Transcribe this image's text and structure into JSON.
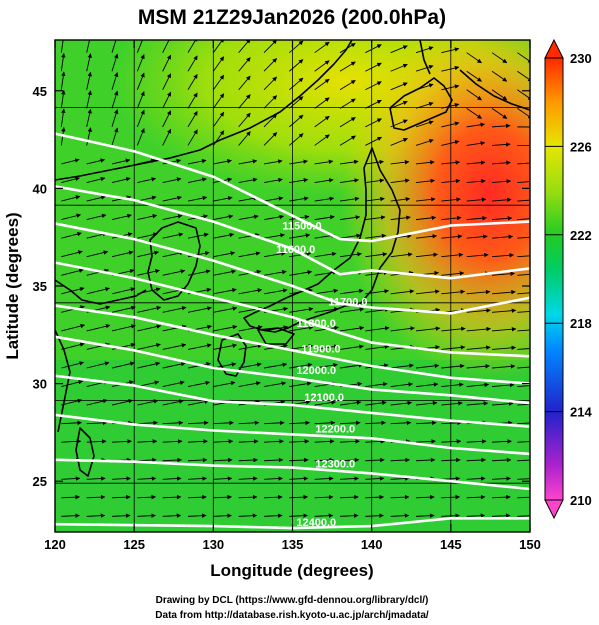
{
  "title": "MSM 21Z29Jan2026 (200.0hPa)",
  "xlabel": "Longitude (degrees)",
  "ylabel": "Latitude  (degrees)",
  "credits": [
    "Drawing by DCL (https://www.gfd-dennou.org/library/dcl/)",
    "Data from http://database.rish.kyoto-u.ac.jp/arch/jmadata/"
  ],
  "chart_data": {
    "type": "heatmap",
    "title": "MSM 21Z29Jan2026 (200.0hPa)",
    "xlabel": "Longitude (degrees)",
    "ylabel": "Latitude  (degrees)",
    "xlim": [
      120,
      150
    ],
    "ylim": [
      22.4,
      47.6
    ],
    "xticks": [
      120,
      125,
      130,
      135,
      140,
      145,
      150
    ],
    "yticks": [
      25,
      30,
      35,
      40,
      45
    ],
    "colorbar": {
      "range": [
        210,
        230
      ],
      "ticks": [
        210,
        214,
        218,
        222,
        226,
        230
      ],
      "colors": [
        "#ff44cc",
        "#2222cc",
        "#00c8ff",
        "#22cc22",
        "#c8e600",
        "#ff2a00"
      ]
    },
    "contour_labels": [
      {
        "text": "11500.0",
        "lon": 135.6,
        "lat": 37.9
      },
      {
        "text": "11600.0",
        "lon": 135.2,
        "lat": 36.7
      },
      {
        "text": "11700.0",
        "lon": 138.5,
        "lat": 34.0
      },
      {
        "text": "11800.0",
        "lon": 136.5,
        "lat": 32.9
      },
      {
        "text": "11900.0",
        "lon": 136.8,
        "lat": 31.6
      },
      {
        "text": "12000.0",
        "lon": 136.5,
        "lat": 30.5
      },
      {
        "text": "12100.0",
        "lon": 137.0,
        "lat": 29.1
      },
      {
        "text": "12200.0",
        "lon": 137.7,
        "lat": 27.5
      },
      {
        "text": "12300.0",
        "lon": 137.7,
        "lat": 25.7
      },
      {
        "text": "12400.0",
        "lon": 136.5,
        "lat": 22.7
      }
    ],
    "contours": [
      {
        "value": 11500,
        "points": [
          [
            120,
            42.8
          ],
          [
            125,
            41.9
          ],
          [
            130,
            40.6
          ],
          [
            135,
            38.6
          ],
          [
            138,
            37.4
          ],
          [
            140,
            37.3
          ],
          [
            145,
            38.1
          ],
          [
            150,
            38.3
          ]
        ]
      },
      {
        "value": 11600,
        "points": [
          [
            120,
            40.1
          ],
          [
            125,
            39.4
          ],
          [
            130,
            38.3
          ],
          [
            135,
            36.9
          ],
          [
            138,
            35.6
          ],
          [
            140,
            35.8
          ],
          [
            145,
            35.4
          ],
          [
            150,
            35.9
          ]
        ]
      },
      {
        "value": 11700,
        "points": [
          [
            120,
            38.2
          ],
          [
            125,
            37.4
          ],
          [
            130,
            36.3
          ],
          [
            135,
            35.0
          ],
          [
            138,
            34.1
          ],
          [
            140,
            33.9
          ],
          [
            145,
            33.6
          ],
          [
            150,
            34.4
          ]
        ]
      },
      {
        "value": 11800,
        "points": [
          [
            120,
            36.2
          ],
          [
            125,
            35.4
          ],
          [
            130,
            34.4
          ],
          [
            135,
            33.4
          ],
          [
            138,
            32.6
          ],
          [
            140,
            32.1
          ],
          [
            145,
            31.6
          ],
          [
            150,
            31.4
          ]
        ]
      },
      {
        "value": 11900,
        "points": [
          [
            120,
            34.0
          ],
          [
            125,
            33.4
          ],
          [
            130,
            32.5
          ],
          [
            135,
            31.7
          ],
          [
            140,
            30.9
          ],
          [
            145,
            30.3
          ],
          [
            150,
            30.0
          ]
        ]
      },
      {
        "value": 12000,
        "points": [
          [
            120,
            32.4
          ],
          [
            125,
            31.7
          ],
          [
            130,
            30.8
          ],
          [
            135,
            30.3
          ],
          [
            140,
            29.7
          ],
          [
            145,
            29.4
          ],
          [
            150,
            29.0
          ]
        ]
      },
      {
        "value": 12100,
        "points": [
          [
            120,
            30.4
          ],
          [
            125,
            29.9
          ],
          [
            130,
            29.1
          ],
          [
            135,
            28.9
          ],
          [
            140,
            28.5
          ],
          [
            145,
            28.1
          ],
          [
            150,
            27.8
          ]
        ]
      },
      {
        "value": 12200,
        "points": [
          [
            120,
            28.4
          ],
          [
            125,
            27.9
          ],
          [
            130,
            27.6
          ],
          [
            135,
            27.4
          ],
          [
            140,
            27.2
          ],
          [
            145,
            26.7
          ],
          [
            150,
            26.4
          ]
        ]
      },
      {
        "value": 12300,
        "points": [
          [
            120,
            26.1
          ],
          [
            125,
            26.0
          ],
          [
            130,
            25.8
          ],
          [
            135,
            25.7
          ],
          [
            140,
            25.4
          ],
          [
            145,
            25.0
          ],
          [
            150,
            24.6
          ]
        ]
      },
      {
        "value": 12400,
        "points": [
          [
            120,
            22.8
          ],
          [
            130,
            22.7
          ],
          [
            135,
            22.6
          ],
          [
            140,
            22.7
          ],
          [
            145,
            23.1
          ],
          [
            150,
            23.1
          ]
        ]
      }
    ]
  }
}
